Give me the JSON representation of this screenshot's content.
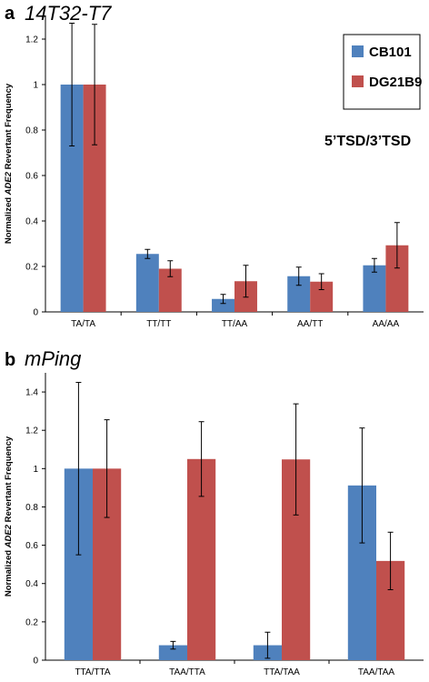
{
  "chart_data": [
    {
      "panel": "a",
      "type": "bar",
      "title": "14T32-T7",
      "ylabel_prefix": "Normalized ",
      "ylabel_gene": "ADE2",
      "ylabel_suffix": " Revertant Frequency",
      "ylim": [
        0,
        1.3
      ],
      "yticks": [
        "0",
        "0.2",
        "0.4",
        "0.6",
        "0.8",
        "1",
        "1.2"
      ],
      "ytick_values": [
        0,
        0.2,
        0.4,
        0.6,
        0.8,
        1,
        1.2
      ],
      "categories": [
        "TA/TA",
        "TT/TT",
        "TT/AA",
        "AA/TT",
        "AA/AA"
      ],
      "series": [
        {
          "name": "CB101",
          "color": "#4f81bd",
          "values": [
            1.0,
            0.255,
            0.057,
            0.157,
            0.205
          ],
          "err": [
            0.27,
            0.02,
            0.02,
            0.04,
            0.03
          ]
        },
        {
          "name": "DG21B9",
          "color": "#c0504d",
          "values": [
            1.0,
            0.19,
            0.135,
            0.133,
            0.293
          ],
          "err": [
            0.265,
            0.035,
            0.07,
            0.035,
            0.1
          ]
        }
      ],
      "annotation": "5’TSD/3’TSD",
      "legend": "top-right",
      "grid": false
    },
    {
      "panel": "b",
      "type": "bar",
      "title": "mPing",
      "ylabel_prefix": "Normalized ",
      "ylabel_gene": "ADE2",
      "ylabel_suffix": " Revertant Frequency",
      "ylim": [
        0,
        1.5
      ],
      "yticks": [
        "0",
        "0.2",
        "0.4",
        "0.6",
        "0.8",
        "1",
        "1.2",
        "1.4"
      ],
      "ytick_values": [
        0,
        0.2,
        0.4,
        0.6,
        0.8,
        1,
        1.2,
        1.4
      ],
      "categories": [
        "TTA/TTA",
        "TAA/TTA",
        "TTA/TAA",
        "TAA/TAA"
      ],
      "series": [
        {
          "name": "CB101",
          "color": "#4f81bd",
          "values": [
            1.0,
            0.078,
            0.078,
            0.912
          ],
          "err": [
            0.45,
            0.02,
            0.068,
            0.3
          ]
        },
        {
          "name": "DG21B9",
          "color": "#c0504d",
          "values": [
            1.0,
            1.05,
            1.048,
            0.518
          ],
          "err": [
            0.255,
            0.195,
            0.29,
            0.15
          ]
        }
      ],
      "grid": false
    }
  ]
}
